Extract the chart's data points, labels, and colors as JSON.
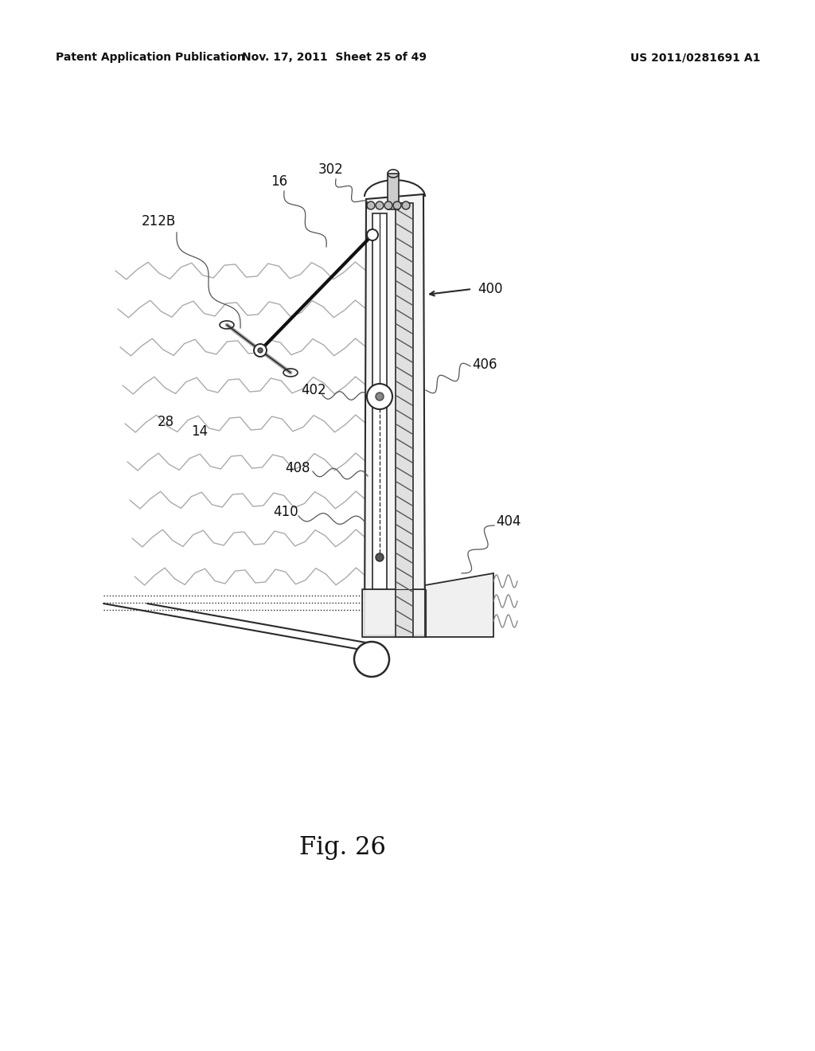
{
  "bg_color": "#ffffff",
  "header_left": "Patent Application Publication",
  "header_mid": "Nov. 17, 2011  Sheet 25 of 49",
  "header_right": "US 2011/0281691 A1",
  "fig_label": "Fig. 26",
  "line_color": "#2a2a2a",
  "label_color": "#111111",
  "label_fontsize": 12,
  "header_fontsize": 10
}
